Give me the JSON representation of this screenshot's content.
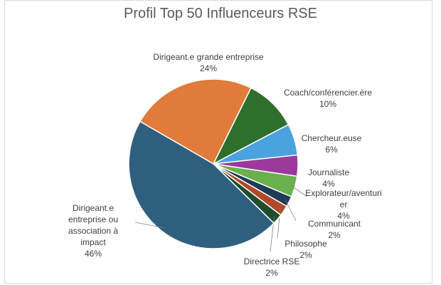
{
  "chart_data": {
    "type": "pie",
    "title": "Profil Top 50 Influenceurs RSE",
    "slices": [
      {
        "name": "Dirigeant.e grande entreprise",
        "lines": [
          "Dirigeant.e grande entreprise"
        ],
        "value": 24,
        "value_label": "24%",
        "color": "#E07B39"
      },
      {
        "name": "Coach/conférencier.ère",
        "lines": [
          "Coach/conférencier.ère"
        ],
        "value": 10,
        "value_label": "10%",
        "color": "#2E6F2E"
      },
      {
        "name": "Chercheur.euse",
        "lines": [
          "Chercheur.euse"
        ],
        "value": 6,
        "value_label": "6%",
        "color": "#4AA3DF"
      },
      {
        "name": "Journaliste",
        "lines": [
          "Journaliste"
        ],
        "value": 4,
        "value_label": "4%",
        "color": "#9B3A9B"
      },
      {
        "name": "Explorateur/aventurier",
        "lines": [
          "Explorateur/aventuri",
          "er"
        ],
        "value": 4,
        "value_label": "4%",
        "color": "#6AB04C"
      },
      {
        "name": "Communicant",
        "lines": [
          "Communicant"
        ],
        "value": 2,
        "value_label": "2%",
        "color": "#1F3B57"
      },
      {
        "name": "Philosophe",
        "lines": [
          "Philosophe"
        ],
        "value": 2,
        "value_label": "2%",
        "color": "#B04A26"
      },
      {
        "name": "Directrice RSE",
        "lines": [
          "Directrice RSE"
        ],
        "value": 2,
        "value_label": "2%",
        "color": "#1E4D2B"
      },
      {
        "name": "Dirigeant.e entreprise ou association à impact",
        "lines": [
          "Dirigeant.e",
          "entreprise ou",
          "association à",
          "impact"
        ],
        "value": 46,
        "value_label": "46%",
        "color": "#2F5F7F"
      }
    ]
  }
}
